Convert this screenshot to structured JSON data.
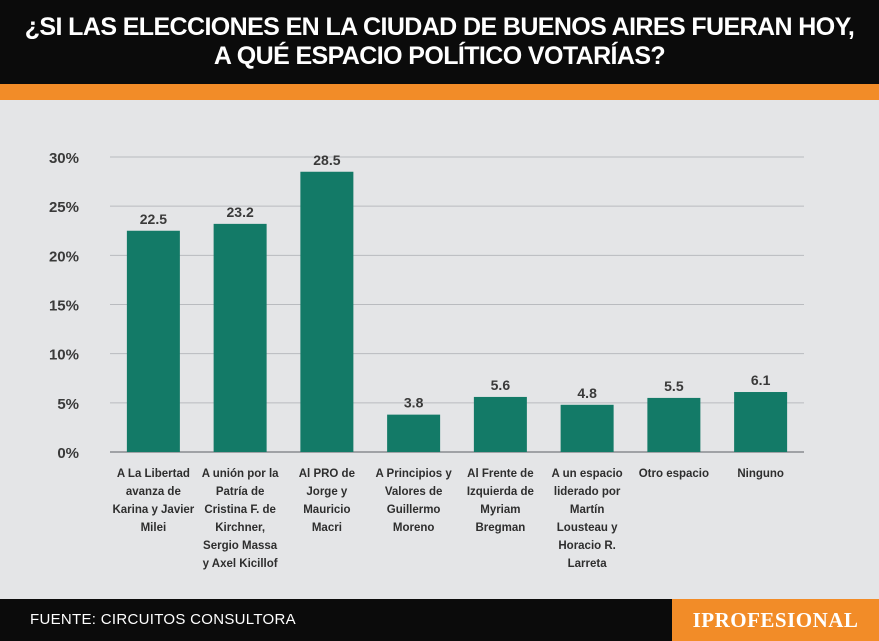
{
  "header": {
    "title_line1": "¿SI LAS ELECCIONES EN LA CIUDAD DE BUENOS AIRES FUERAN HOY,",
    "title_line2": "A QUÉ ESPACIO POLÍTICO VOTARÍAS?"
  },
  "footer": {
    "source": "FUENTE: CIRCUITOS CONSULTORA",
    "brand": "IPROFESIONAL"
  },
  "colors": {
    "bar": "#137a67",
    "accent": "#f28c28",
    "header_bg": "#0b0b0b",
    "background": "#e4e5e7"
  },
  "chart_data": {
    "type": "bar",
    "categories": [
      [
        "A La Libertad",
        "avanza de",
        "Karina y Javier",
        "Milei"
      ],
      [
        "A unión por la",
        "Patría de",
        "Cristina F. de",
        "Kirchner,",
        "Sergio Massa",
        "y Axel Kicillof"
      ],
      [
        "Al PRO de",
        "Jorge y",
        "Mauricio",
        "Macri"
      ],
      [
        "A Principios y",
        "Valores de",
        "Guillermo",
        "Moreno"
      ],
      [
        "Al Frente de",
        "Izquierda de",
        "Myriam",
        "Bregman"
      ],
      [
        "A un espacio",
        "liderado por",
        "Martín",
        "Lousteau y",
        "Horacio R.",
        "Larreta"
      ],
      [
        "Otro espacio"
      ],
      [
        "Ninguno"
      ]
    ],
    "values": [
      22.5,
      23.2,
      28.5,
      3.8,
      5.6,
      4.8,
      5.5,
      6.1
    ],
    "value_labels": [
      "22.5",
      "23.2",
      "28.5",
      "3.8",
      "5.6",
      "4.8",
      "5.5",
      "6.1"
    ],
    "yticks": [
      "0%",
      "5%",
      "10%",
      "15%",
      "20%",
      "25%",
      "30%"
    ],
    "ylim": [
      0,
      30
    ],
    "grid": true,
    "legend": "none"
  }
}
